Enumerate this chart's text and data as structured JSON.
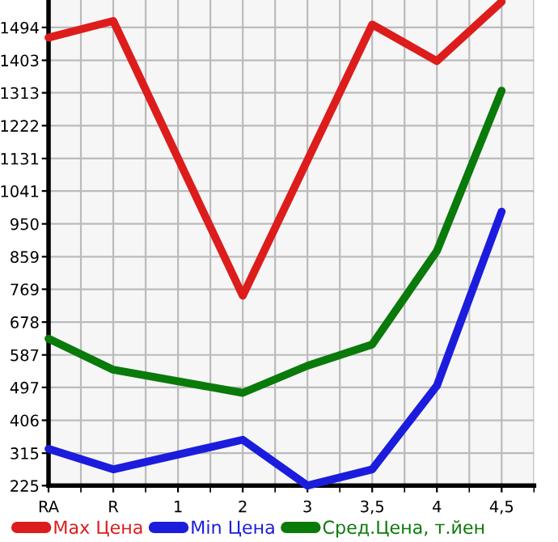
{
  "chart_data": {
    "type": "line",
    "categories": [
      "RA",
      "R",
      "1",
      "2",
      "3",
      "3,5",
      "4",
      "4,5"
    ],
    "series": [
      {
        "name": "Max Цена",
        "color": "#dd1c1c",
        "values": [
          1466,
          1512,
          null,
          751,
          null,
          1502,
          1401,
          1565
        ]
      },
      {
        "name": "Min Цена",
        "color": "#1c1cdd",
        "values": [
          327,
          270,
          null,
          352,
          225,
          270,
          502,
          984
        ]
      },
      {
        "name": "Сред.Цена, т.йен",
        "color": "#0a7a0a",
        "values": [
          632,
          546,
          null,
          482,
          557,
          616,
          875,
          1319
        ]
      }
    ],
    "ylim": [
      225,
      1570
    ],
    "yticks": [
      225,
      315,
      406,
      497,
      587,
      678,
      769,
      859,
      950,
      1041,
      1131,
      1222,
      1313,
      1403,
      1494
    ],
    "grid": true,
    "legend": "bottom",
    "marker": "none",
    "line_style": "solid"
  }
}
